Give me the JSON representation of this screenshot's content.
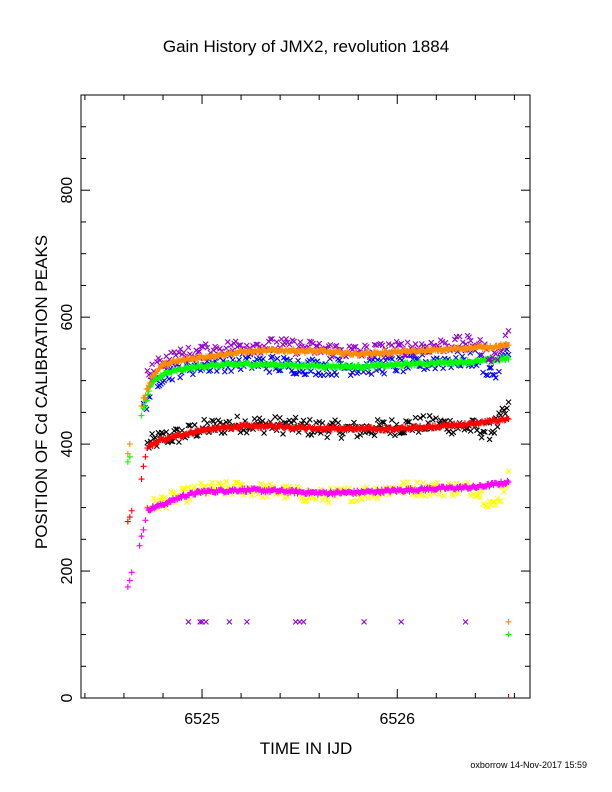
{
  "chart_data": {
    "type": "scatter",
    "title": "Gain History of JMX2, revolution 1884",
    "xlabel": "TIME IN IJD",
    "ylabel": "POSITION OF Cd CALIBRATION PEAKS",
    "xlim": [
      6524.38,
      6526.68
    ],
    "ylim": [
      0,
      950
    ],
    "x_ticks": [
      6525,
      6526
    ],
    "y_ticks": [
      0,
      200,
      400,
      600,
      800
    ],
    "grid": false,
    "footer": "oxborrow 14-Nov-2017 15:59",
    "series": [
      {
        "marker": "x",
        "color": "#000000",
        "keypoints": [
          [
            6524.72,
            398
          ],
          [
            6524.76,
            405
          ],
          [
            6524.8,
            410
          ],
          [
            6524.9,
            415
          ],
          [
            6525.0,
            425
          ],
          [
            6525.2,
            432
          ],
          [
            6525.4,
            430
          ],
          [
            6525.6,
            425
          ],
          [
            6525.8,
            422
          ],
          [
            6526.0,
            428
          ],
          [
            6526.2,
            432
          ],
          [
            6526.4,
            425
          ],
          [
            6526.48,
            420
          ],
          [
            6526.57,
            455
          ]
        ],
        "spread": 14,
        "count": 230
      },
      {
        "marker": "+",
        "color": "#ff0000",
        "keypoints": [
          [
            6524.72,
            395
          ],
          [
            6524.78,
            405
          ],
          [
            6524.9,
            415
          ],
          [
            6525.0,
            422
          ],
          [
            6525.2,
            428
          ],
          [
            6525.4,
            428
          ],
          [
            6525.6,
            425
          ],
          [
            6525.8,
            424
          ],
          [
            6526.0,
            424
          ],
          [
            6526.2,
            428
          ],
          [
            6526.4,
            432
          ],
          [
            6526.57,
            440
          ]
        ],
        "spread": 3,
        "count": 340,
        "early": [
          [
            6524.62,
            278
          ],
          [
            6524.63,
            285
          ],
          [
            6524.64,
            295
          ],
          [
            6524.69,
            345
          ],
          [
            6524.7,
            365
          ],
          [
            6524.71,
            380
          ]
        ]
      },
      {
        "marker": "x",
        "color": "#ffff00",
        "keypoints": [
          [
            6524.72,
            300
          ],
          [
            6524.8,
            310
          ],
          [
            6524.9,
            318
          ],
          [
            6525.0,
            328
          ],
          [
            6525.2,
            330
          ],
          [
            6525.4,
            325
          ],
          [
            6525.6,
            318
          ],
          [
            6525.8,
            322
          ],
          [
            6526.0,
            330
          ],
          [
            6526.2,
            330
          ],
          [
            6526.4,
            330
          ],
          [
            6526.5,
            300
          ],
          [
            6526.57,
            350
          ]
        ],
        "spread": 12,
        "count": 230
      },
      {
        "marker": "+",
        "color": "#ff00ff",
        "keypoints": [
          [
            6524.72,
            297
          ],
          [
            6524.8,
            305
          ],
          [
            6524.9,
            318
          ],
          [
            6525.0,
            325
          ],
          [
            6525.2,
            328
          ],
          [
            6525.4,
            326
          ],
          [
            6525.6,
            323
          ],
          [
            6525.8,
            324
          ],
          [
            6526.0,
            327
          ],
          [
            6526.2,
            330
          ],
          [
            6526.4,
            332
          ],
          [
            6526.57,
            340
          ]
        ],
        "spread": 3,
        "count": 340,
        "early": [
          [
            6524.62,
            175
          ],
          [
            6524.63,
            185
          ],
          [
            6524.64,
            198
          ],
          [
            6524.68,
            240
          ],
          [
            6524.69,
            255
          ],
          [
            6524.7,
            265
          ],
          [
            6524.71,
            280
          ]
        ]
      },
      {
        "marker": "x",
        "color": "#0000ff",
        "keypoints": [
          [
            6524.7,
            455
          ],
          [
            6524.75,
            495
          ],
          [
            6524.8,
            510
          ],
          [
            6524.9,
            520
          ],
          [
            6525.0,
            525
          ],
          [
            6525.2,
            530
          ],
          [
            6525.4,
            525
          ],
          [
            6525.6,
            522
          ],
          [
            6525.8,
            522
          ],
          [
            6526.0,
            525
          ],
          [
            6526.2,
            530
          ],
          [
            6526.4,
            535
          ],
          [
            6526.5,
            510
          ],
          [
            6526.57,
            555
          ]
        ],
        "spread": 14,
        "count": 230
      },
      {
        "marker": "+",
        "color": "#00ff00",
        "keypoints": [
          [
            6524.7,
            455
          ],
          [
            6524.74,
            495
          ],
          [
            6524.8,
            510
          ],
          [
            6524.9,
            518
          ],
          [
            6525.0,
            523
          ],
          [
            6525.2,
            526
          ],
          [
            6525.4,
            525
          ],
          [
            6525.6,
            523
          ],
          [
            6525.8,
            522
          ],
          [
            6526.0,
            525
          ],
          [
            6526.2,
            528
          ],
          [
            6526.4,
            530
          ],
          [
            6526.57,
            535
          ]
        ],
        "spread": 3,
        "count": 340,
        "early": [
          [
            6524.62,
            372
          ],
          [
            6524.63,
            380
          ],
          [
            6524.69,
            445
          ],
          [
            6524.7,
            460
          ]
        ],
        "outliers": [
          [
            6526.57,
            100
          ]
        ]
      },
      {
        "marker": "x",
        "color": "#9400d3",
        "keypoints": [
          [
            6524.72,
            505
          ],
          [
            6524.78,
            530
          ],
          [
            6524.9,
            540
          ],
          [
            6525.0,
            545
          ],
          [
            6525.2,
            555
          ],
          [
            6525.4,
            555
          ],
          [
            6525.6,
            550
          ],
          [
            6525.8,
            545
          ],
          [
            6526.0,
            550
          ],
          [
            6526.2,
            555
          ],
          [
            6526.4,
            560
          ],
          [
            6526.5,
            535
          ],
          [
            6526.57,
            570
          ]
        ],
        "spread": 12,
        "count": 230,
        "outliers": [
          [
            6524.93,
            120
          ],
          [
            6524.99,
            120
          ],
          [
            6525.0,
            120
          ],
          [
            6525.02,
            120
          ],
          [
            6525.14,
            120
          ],
          [
            6525.23,
            120
          ],
          [
            6525.48,
            120
          ],
          [
            6525.5,
            120
          ],
          [
            6525.52,
            120
          ],
          [
            6525.83,
            120
          ],
          [
            6526.02,
            120
          ],
          [
            6526.35,
            120
          ]
        ]
      },
      {
        "marker": "+",
        "color": "#ff8c00",
        "keypoints": [
          [
            6524.7,
            470
          ],
          [
            6524.74,
            505
          ],
          [
            6524.8,
            525
          ],
          [
            6524.9,
            532
          ],
          [
            6525.0,
            537
          ],
          [
            6525.2,
            545
          ],
          [
            6525.4,
            548
          ],
          [
            6525.6,
            546
          ],
          [
            6525.8,
            542
          ],
          [
            6526.0,
            545
          ],
          [
            6526.2,
            548
          ],
          [
            6526.4,
            552
          ],
          [
            6526.57,
            555
          ]
        ],
        "spread": 3,
        "count": 340,
        "early": [
          [
            6524.62,
            385
          ],
          [
            6524.63,
            400
          ],
          [
            6524.69,
            460
          ]
        ],
        "outliers": [
          [
            6526.57,
            120
          ]
        ]
      }
    ]
  }
}
